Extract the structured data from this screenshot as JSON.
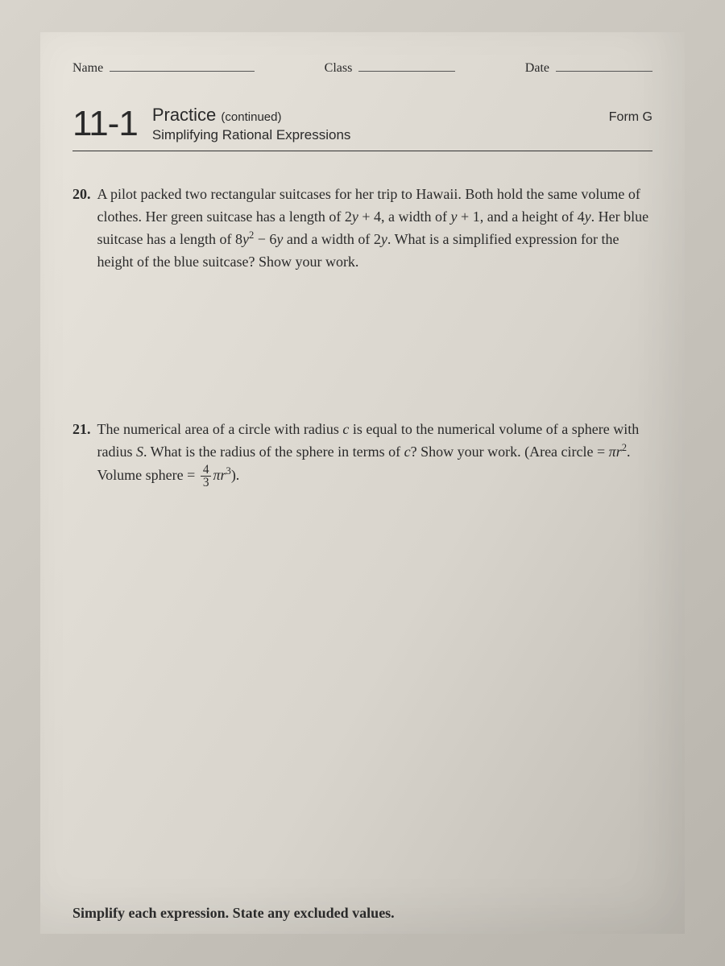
{
  "header": {
    "name_label": "Name",
    "class_label": "Class",
    "date_label": "Date"
  },
  "lesson": {
    "number": "11-1",
    "practice_label": "Practice",
    "continued": "(continued)",
    "subtitle": "Simplifying Rational Expressions",
    "form": "Form G"
  },
  "problems": {
    "p20": {
      "number": "20.",
      "line1_a": "A pilot packed two rectangular suitcases for her trip to Hawaii. Both hold the",
      "line2_a": "same volume of clothes. Her green suitcase has a length of 2",
      "line2_b": " + 4, a width",
      "line3_a": "of ",
      "line3_b": " + 1, and a height of 4",
      "line3_c": ". Her blue suitcase has a length of 8",
      "line3_d": " − 6",
      "line3_e": " and a",
      "line4_a": "width of 2",
      "line4_b": ". What is a simplified expression for the height of the blue suitcase?",
      "line5": "Show your work."
    },
    "p21": {
      "number": "21.",
      "line1_a": "The numerical area of a circle with radius ",
      "line1_b": " is equal to the numerical volume",
      "line2_a": "of a sphere with radius ",
      "line2_b": ". What is the radius of the sphere in terms of ",
      "line2_c": "? Show",
      "line3_a": "your work. (Area circle = ",
      "line3_b": ". Volume sphere = ",
      "line3_c": ")."
    }
  },
  "vars": {
    "y": "y",
    "c": "c",
    "S": "S",
    "r": "r",
    "pi": "π",
    "two": "2",
    "three": "3",
    "four": "4"
  },
  "bottom": {
    "instruction_a": "Simplify each expression. State any excluded values."
  },
  "colors": {
    "text": "#2a2a2a",
    "paper_light": "#e8e4dc",
    "paper_dark": "#c0bcb4",
    "rule": "#333333"
  }
}
